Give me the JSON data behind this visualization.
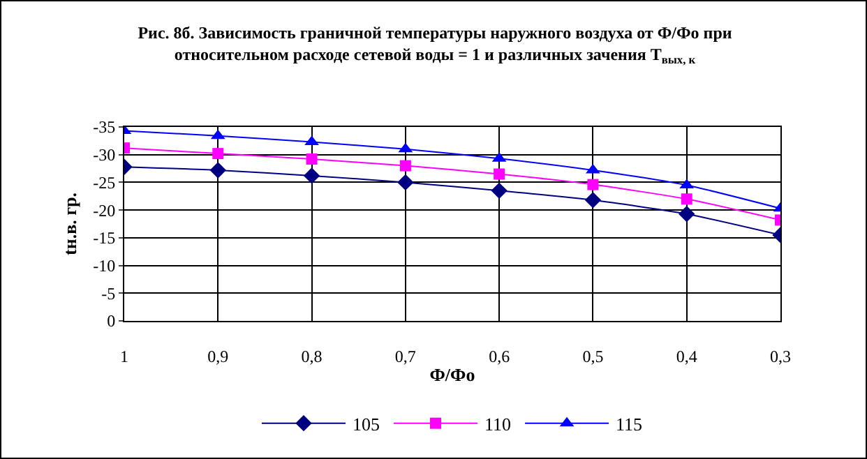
{
  "chart_data": {
    "type": "line",
    "title": "Рис. 8б. Зависимость граничной температуры наружного воздуха от Ф/Фо при относительном расходе сетевой воды = 1 и различных зачения Т$_{вых, к}$",
    "xlabel": "Ф/Фо",
    "ylabel": "tн.в. гр.",
    "categories": [
      "1",
      "0,9",
      "0,8",
      "0,7",
      "0,6",
      "0,5",
      "0,4",
      "0,3"
    ],
    "series": [
      {
        "name": "105",
        "color": "#000080",
        "marker": "diamond",
        "values": [
          -27.8,
          -27.2,
          -26.2,
          -25,
          -23.5,
          -21.8,
          -19.3,
          -15.5
        ]
      },
      {
        "name": "110",
        "color": "#ff00ff",
        "marker": "square",
        "values": [
          -31.2,
          -30.2,
          -29.2,
          -28,
          -26.5,
          -24.6,
          -22,
          -18.2
        ]
      },
      {
        "name": "115",
        "color": "#0000ff",
        "marker": "triangle",
        "values": [
          -34.3,
          -33.4,
          -32.3,
          -31,
          -29.3,
          -27.2,
          -24.5,
          -20.3
        ]
      }
    ],
    "ylim": [
      0,
      -35
    ],
    "yticks": [
      -35,
      -30,
      -25,
      -20,
      -15,
      -10,
      -5,
      0
    ],
    "grid": true,
    "legend": "bottom",
    "line_style": "solid"
  }
}
